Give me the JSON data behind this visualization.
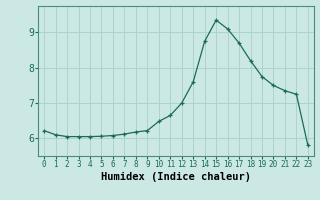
{
  "xlabel": "Humidex (Indice chaleur)",
  "background_color": "#cce8e4",
  "grid_color": "#aad4cf",
  "line_color": "#1a6b5a",
  "marker_color": "#1a6b5a",
  "x_values": [
    0,
    1,
    2,
    3,
    4,
    5,
    6,
    7,
    8,
    9,
    10,
    11,
    12,
    13,
    14,
    15,
    16,
    17,
    18,
    19,
    20,
    21,
    22,
    23
  ],
  "y_values": [
    6.22,
    6.1,
    6.05,
    6.05,
    6.05,
    6.06,
    6.08,
    6.12,
    6.18,
    6.22,
    6.48,
    6.65,
    7.0,
    7.6,
    8.75,
    9.35,
    9.1,
    8.7,
    8.2,
    7.75,
    7.5,
    7.35,
    7.25,
    5.8
  ],
  "ylim": [
    5.5,
    9.75
  ],
  "yticks": [
    6,
    7,
    8,
    9
  ],
  "xticks": [
    0,
    1,
    2,
    3,
    4,
    5,
    6,
    7,
    8,
    9,
    10,
    11,
    12,
    13,
    14,
    15,
    16,
    17,
    18,
    19,
    20,
    21,
    22,
    23
  ]
}
